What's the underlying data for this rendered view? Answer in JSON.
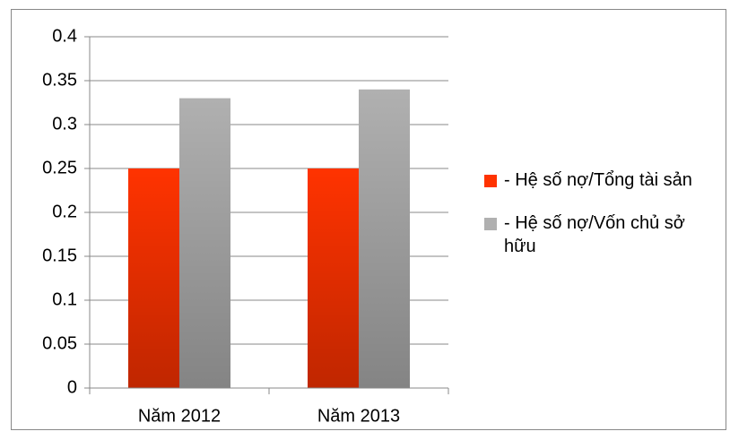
{
  "chart_data": {
    "type": "bar",
    "categories": [
      "Năm 2012",
      "Năm 2013"
    ],
    "series": [
      {
        "name": "- Hệ số nợ/Tổng tài sản",
        "color": "#ff3300",
        "values": [
          0.25,
          0.25
        ]
      },
      {
        "name": "- Hệ số nợ/Vốn chủ sở hữu",
        "color": "#b0b0b0",
        "values": [
          0.33,
          0.34
        ]
      }
    ],
    "ylim": [
      0,
      0.4
    ],
    "yticks": [
      0,
      0.05,
      0.1,
      0.15,
      0.2,
      0.25,
      0.3,
      0.35,
      0.4
    ],
    "grid": true,
    "legend": "right"
  }
}
